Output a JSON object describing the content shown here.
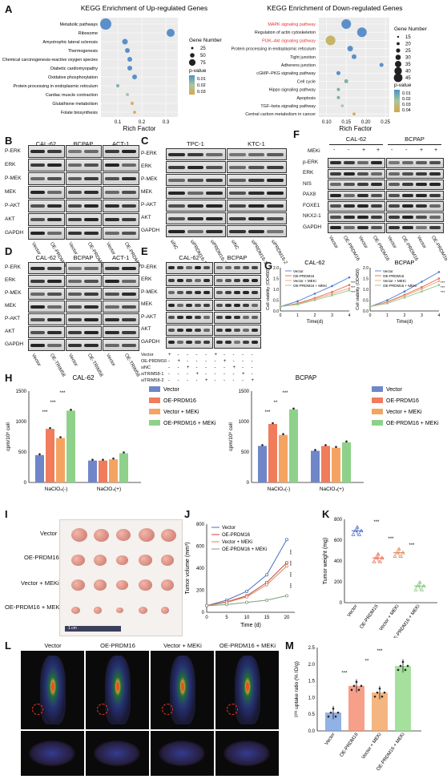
{
  "panels": {
    "A": "A",
    "B": "B",
    "C": "C",
    "D": "D",
    "E": "E",
    "F": "F",
    "G": "G",
    "H": "H",
    "I": "I",
    "J": "J",
    "K": "K",
    "L": "L",
    "M": "M"
  },
  "kegg": {
    "up": {
      "title": "KEGG Enrichment of Up-regulated Genes",
      "xlabel": "Rich Factor",
      "terms": [
        "Metabolic pathways",
        "Ribosome",
        "Amyotrophic lateral sclerosis",
        "Thermogenesis",
        "Chemical carcinogenesis-reactive oxygen species",
        "Diabetic cardiomyopathy",
        "Oxidative phosphorylation",
        "Protein processing in endoplasmic reticulum",
        "Cardiac muscle contraction",
        "Glutathione metabolism",
        "Folate biosynthesis"
      ],
      "ticks": [
        "0.1",
        "0.2",
        "0.3"
      ],
      "legend_size_title": "Gene Number",
      "legend_sizes": [
        "25",
        "50",
        "75"
      ],
      "legend_p_title": "p-value",
      "legend_p": [
        "0.01",
        "0.02",
        "0.03"
      ]
    },
    "down": {
      "title": "KEGG Enrichment of Down-regulated Genes",
      "xlabel": "Rich Factor",
      "terms": [
        "MAPK signaling pathway",
        "Regulation of actin cytoskeleton",
        "PI3K–Akt signaling pathway",
        "Protein processing in endoplasmic reticulum",
        "Tight junction",
        "Adherens junction",
        "cGMP–PKG signaling pathway",
        "Cell cycle",
        "Hippo signaling pathway",
        "Apoptosis",
        "TGF–beta signaling pathway",
        "Central carbon metabolism in cancer"
      ],
      "highlight_color": "#e8312f",
      "ticks": [
        "0.10",
        "0.15",
        "0.20",
        "0.25"
      ],
      "legend_size_title": "Gene Number",
      "legend_sizes": [
        "15",
        "20",
        "25",
        "30",
        "35",
        "40",
        "45"
      ],
      "legend_p_title": "p-value",
      "legend_p": [
        "0.01",
        "0.02",
        "0.03",
        "0.04"
      ]
    }
  },
  "blots": {
    "B": {
      "groups": [
        "CAL-62",
        "BCPAP",
        "ACT-1"
      ],
      "rows": [
        "P-ERK",
        "ERK",
        "P-MEK",
        "MEK",
        "P-AKT",
        "AKT",
        "GAPDH"
      ],
      "lanes": [
        "Vector",
        "OE-PRDM16",
        "Vector",
        "OE-PRDM16",
        "Vector",
        "OE-PRDM16"
      ]
    },
    "C": {
      "groups": [
        "TPC-1",
        "KTC-1"
      ],
      "rows": [
        "P-ERK",
        "ERK",
        "P-MEK",
        "MEK",
        "P-AKT",
        "AKT",
        "GAPDH"
      ],
      "lanes": [
        "siNC",
        "siPRDM16-1",
        "siPRDM16-2",
        "siNC",
        "siPRDM16-1",
        "siPRDM16-2"
      ]
    },
    "D": {
      "groups": [
        "CAL-62",
        "BCPAP",
        "ACT-1"
      ],
      "rows": [
        "P-ERK",
        "ERK",
        "P-MEK",
        "MEK",
        "P-AKT",
        "AKT",
        "GAPDH"
      ],
      "lanes": [
        "Vector",
        "OE-TRIM58",
        "Vector",
        "OE-TRIM58",
        "Vector",
        "OE-TRIM58"
      ]
    },
    "E": {
      "groups": [
        "CAL-62",
        "BCPAP"
      ],
      "rows": [
        "P-ERK",
        "ERK",
        "P-MEK",
        "MEK",
        "P-AKT",
        "AKT",
        "GAPDH"
      ],
      "conditions": [
        "Vector",
        "OE-PRDM16",
        "siNC",
        "siTRIM58-1",
        "siTRIM58-2"
      ],
      "signs": [
        "+",
        "-",
        "-",
        "-",
        "-",
        "+",
        "-",
        "-",
        "-",
        "-"
      ]
    },
    "F": {
      "groups": [
        "CAL-62",
        "BCPAP"
      ],
      "meki_label": "MEKi",
      "meki_signs": [
        "-",
        "-",
        "+",
        "+",
        "-",
        "-",
        "+",
        "+"
      ],
      "rows": [
        "p-ERK",
        "ERK",
        "NIS",
        "PAX8",
        "FOXE1",
        "NKX2-1",
        "GAPDH"
      ],
      "lanes": [
        "Vector",
        "OE-PRDM16",
        "Vector",
        "OE-PRDM16",
        "Vector",
        "OE-PRDM16",
        "Vector",
        "OE-PRDM16"
      ]
    }
  },
  "panel_G": {
    "ylabel": "Cell viability (OD450)",
    "xlabel": "Time(d)",
    "charts": [
      {
        "title": "CAL-62",
        "x": [
          0,
          1,
          2,
          3,
          4
        ],
        "ylim": [
          0,
          2.0
        ],
        "yticks": [
          "0.0",
          "0.5",
          "1.0",
          "1.5",
          "2.0"
        ],
        "series": [
          {
            "name": "Vector",
            "color": "#4a7bd1",
            "values": [
              0.2,
              0.45,
              0.8,
              1.15,
              1.55
            ]
          },
          {
            "name": "OE-PRDM16",
            "color": "#e8674a",
            "values": [
              0.2,
              0.35,
              0.6,
              0.88,
              1.2
            ]
          },
          {
            "name": "Vector + MEKi",
            "color": "#f0a37e",
            "values": [
              0.2,
              0.32,
              0.55,
              0.8,
              1.05
            ]
          },
          {
            "name": "OE-PRDM16 + MEKi",
            "color": "#8dc88a",
            "values": [
              0.2,
              0.3,
              0.5,
              0.72,
              0.95
            ]
          }
        ]
      },
      {
        "title": "BCPAP",
        "x": [
          0,
          1,
          2,
          3,
          4
        ],
        "ylim": [
          0,
          2.0
        ],
        "yticks": [
          "0.0",
          "0.5",
          "1.0",
          "1.5",
          "2.0"
        ],
        "series": [
          {
            "name": "Vector",
            "color": "#4a7bd1",
            "values": [
              0.2,
              0.5,
              0.9,
              1.35,
              1.8
            ]
          },
          {
            "name": "OE-PRDM16",
            "color": "#e8674a",
            "values": [
              0.2,
              0.42,
              0.75,
              1.1,
              1.5
            ]
          },
          {
            "name": "Vector + MEKi",
            "color": "#f0a37e",
            "values": [
              0.2,
              0.4,
              0.7,
              1.02,
              1.38
            ]
          },
          {
            "name": "OE-PRDM16 + MEKi",
            "color": "#8dc88a",
            "values": [
              0.2,
              0.35,
              0.62,
              0.9,
              1.2
            ]
          }
        ]
      }
    ],
    "sig": "***"
  },
  "panel_H": {
    "ylabel": "cpm/10⁶ cell",
    "categories": [
      "NaClO₄(-)",
      "NaClO₄(+)"
    ],
    "legend": [
      "Vector",
      "OE-PRDM16",
      "Vector + MEKi",
      "OE-PRDM16 + MEKi"
    ],
    "colors": [
      "#6f86c8",
      "#f07c5c",
      "#f5a361",
      "#8fd18a"
    ],
    "sig": "***",
    "sig2": "**",
    "charts": [
      {
        "title": "CAL-62",
        "ylim": [
          0,
          1500
        ],
        "yticks": [
          "0",
          "500",
          "1000",
          "1500"
        ],
        "values": [
          [
            450,
            880,
            730,
            1180
          ],
          [
            360,
            360,
            380,
            480
          ]
        ]
      },
      {
        "title": "BCPAP",
        "ylim": [
          0,
          1500
        ],
        "yticks": [
          "0",
          "500",
          "1000",
          "1500"
        ],
        "values": [
          [
            600,
            960,
            780,
            1200
          ],
          [
            520,
            600,
            570,
            660
          ]
        ]
      }
    ]
  },
  "panel_I": {
    "rows": [
      "Vector",
      "OE-PRDM16",
      "Vector + MEKi",
      "OE-PRDM16 + MEKi"
    ],
    "ruler": "1 cm"
  },
  "panel_J": {
    "ylabel": "Tumor volume (mm³)",
    "xlabel": "Time (d)",
    "x": [
      0,
      5,
      10,
      15,
      20
    ],
    "ylim": [
      0,
      800
    ],
    "yticks": [
      "0",
      "200",
      "400",
      "600",
      "800"
    ],
    "xticks": [
      "0",
      "5",
      "10",
      "15",
      "20"
    ],
    "sig": "***",
    "series": [
      {
        "name": "Vector",
        "color": "#4a6fc4",
        "values": [
          60,
          110,
          190,
          340,
          660
        ]
      },
      {
        "name": "OE-PRDM16",
        "color": "#c8463c",
        "values": [
          60,
          95,
          150,
          270,
          450
        ]
      },
      {
        "name": "Vector + MEKi",
        "color": "#d88a58",
        "values": [
          60,
          90,
          140,
          250,
          420
        ]
      },
      {
        "name": "OE-PRDM16 + MEKi",
        "color": "#7f9d7c",
        "values": [
          60,
          70,
          90,
          110,
          150
        ]
      }
    ]
  },
  "panel_K": {
    "ylabel": "Tumor weight (mg)",
    "ylim": [
      0,
      800
    ],
    "yticks": [
      "0",
      "200",
      "400",
      "600",
      "800"
    ],
    "groups": [
      "Vector",
      "OE-PRDM16",
      "Vector + MEKi",
      "OE-PRDM16 + MEKi"
    ],
    "colors": [
      "#4a6fc4",
      "#e8674a",
      "#d88a58",
      "#7fc27a"
    ],
    "means": [
      690,
      430,
      480,
      160
    ],
    "sig": "***"
  },
  "panel_L": {
    "labels": [
      "Vector",
      "OE-PRDM16",
      "Vector + MEKi",
      "OE-PRDM16 + MEKi"
    ]
  },
  "panel_M": {
    "ylabel": "I¹³¹ uptake ratio (% ID/g)",
    "ylim": [
      0,
      2.5
    ],
    "yticks": [
      "0.0",
      "0.5",
      "1.0",
      "1.5",
      "2.0",
      "2.5"
    ],
    "groups": [
      "Vector",
      "OE-PRDM16",
      "Vector + MEKi",
      "OE-PRDM16 + MEKi"
    ],
    "colors": [
      "#7fa3e0",
      "#f58f75",
      "#f3a86a",
      "#95dc8c"
    ],
    "means": [
      0.55,
      1.35,
      1.15,
      1.95
    ],
    "sig": "***",
    "sig2": "**"
  }
}
